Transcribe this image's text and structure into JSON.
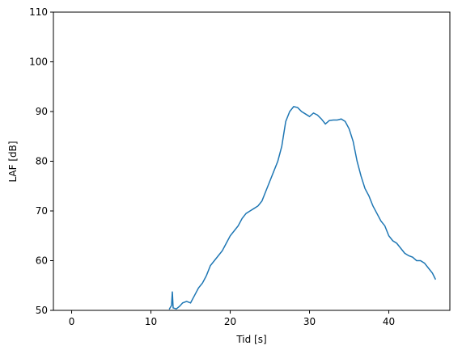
{
  "chart_data": {
    "type": "line",
    "x_label": "Tid [s]",
    "y_label": "LAF [dB]",
    "xlim": [
      -2.3,
      47.7
    ],
    "ylim": [
      50,
      110
    ],
    "xticks": [
      0,
      10,
      20,
      30,
      40
    ],
    "yticks": [
      50,
      60,
      70,
      80,
      90,
      100,
      110
    ],
    "grid": false,
    "series": [
      {
        "color": "#1f77b4",
        "x": [
          12.3,
          12.6,
          12.7,
          12.8,
          13.2,
          13.6,
          14.0,
          14.5,
          15.0,
          15.5,
          16.0,
          16.5,
          17.0,
          17.5,
          18.0,
          18.5,
          19.0,
          19.5,
          20.0,
          20.5,
          21.0,
          21.5,
          22.0,
          22.5,
          23.0,
          23.5,
          24.0,
          24.5,
          25.0,
          25.5,
          26.0,
          26.5,
          27.0,
          27.5,
          28.0,
          28.5,
          29.0,
          29.5,
          30.0,
          30.5,
          31.0,
          31.5,
          32.0,
          32.5,
          33.0,
          33.5,
          34.0,
          34.5,
          35.0,
          35.5,
          36.0,
          36.5,
          37.0,
          37.5,
          38.0,
          38.5,
          39.0,
          39.5,
          40.0,
          40.5,
          41.0,
          41.5,
          42.0,
          42.5,
          43.0,
          43.5,
          44.0,
          44.5,
          45.0,
          45.5,
          45.9
        ],
        "values": [
          50.2,
          51,
          53.8,
          50.5,
          50.3,
          50.8,
          51.5,
          51.8,
          51.5,
          53,
          54.5,
          55.5,
          57,
          59,
          60,
          61,
          62,
          63.5,
          65,
          66,
          67,
          68.5,
          69.5,
          70,
          70.5,
          71,
          72,
          74,
          76,
          78,
          80,
          83,
          88,
          90,
          91,
          90.8,
          90,
          89.5,
          89,
          89.7,
          89.3,
          88.5,
          87.5,
          88.2,
          88.3,
          88.3,
          88.5,
          88,
          86.5,
          84,
          80,
          77,
          74.5,
          73,
          71,
          69.5,
          68,
          67,
          65,
          64,
          63.5,
          62.5,
          61.5,
          61,
          60.7,
          60,
          60,
          59.5,
          58.5,
          57.5,
          56.2
        ]
      }
    ]
  }
}
